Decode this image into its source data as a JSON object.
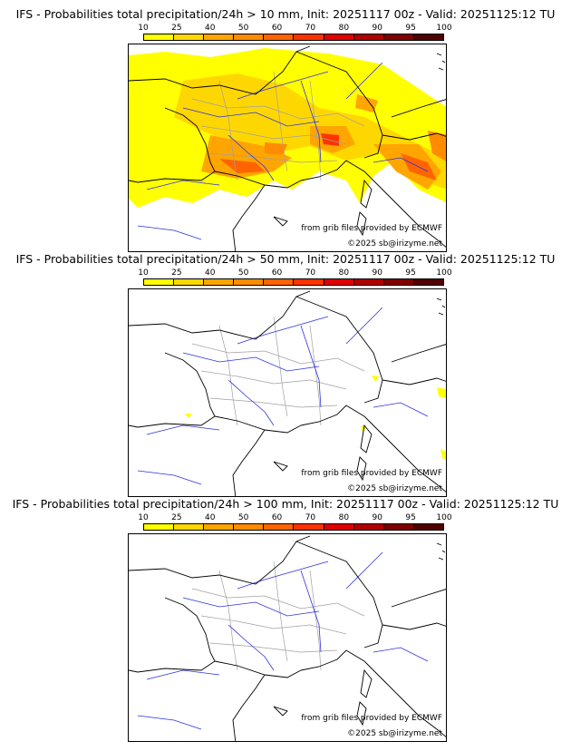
{
  "colors": {
    "scale": [
      "#ffff00",
      "#ffd700",
      "#ffa500",
      "#ff8c00",
      "#ff6400",
      "#ff3300",
      "#e00000",
      "#b00000",
      "#800000",
      "#500000"
    ],
    "coast": "#000000",
    "rivers": "#3030e0",
    "regions": "#a0a0a0"
  },
  "scale_labels": [
    "10",
    "25",
    "40",
    "50",
    "60",
    "70",
    "80",
    "90",
    "95",
    "100"
  ],
  "credits": {
    "grib": "from grib files provided by ECMWF",
    "copyright": "©2025 sb@irizyme.net"
  },
  "panels": [
    {
      "title": "IFS - Probabilities total precipitation/24h > 10 mm, Init: 20251117 00z - Valid: 20251125:12 TU"
    },
    {
      "title": "IFS - Probabilities total precipitation/24h > 50 mm, Init: 20251117 00z - Valid: 20251125:12 TU"
    },
    {
      "title": "IFS - Probabilities total precipitation/24h > 100 mm, Init: 20251117 00z - Valid: 20251125:12 TU"
    }
  ]
}
